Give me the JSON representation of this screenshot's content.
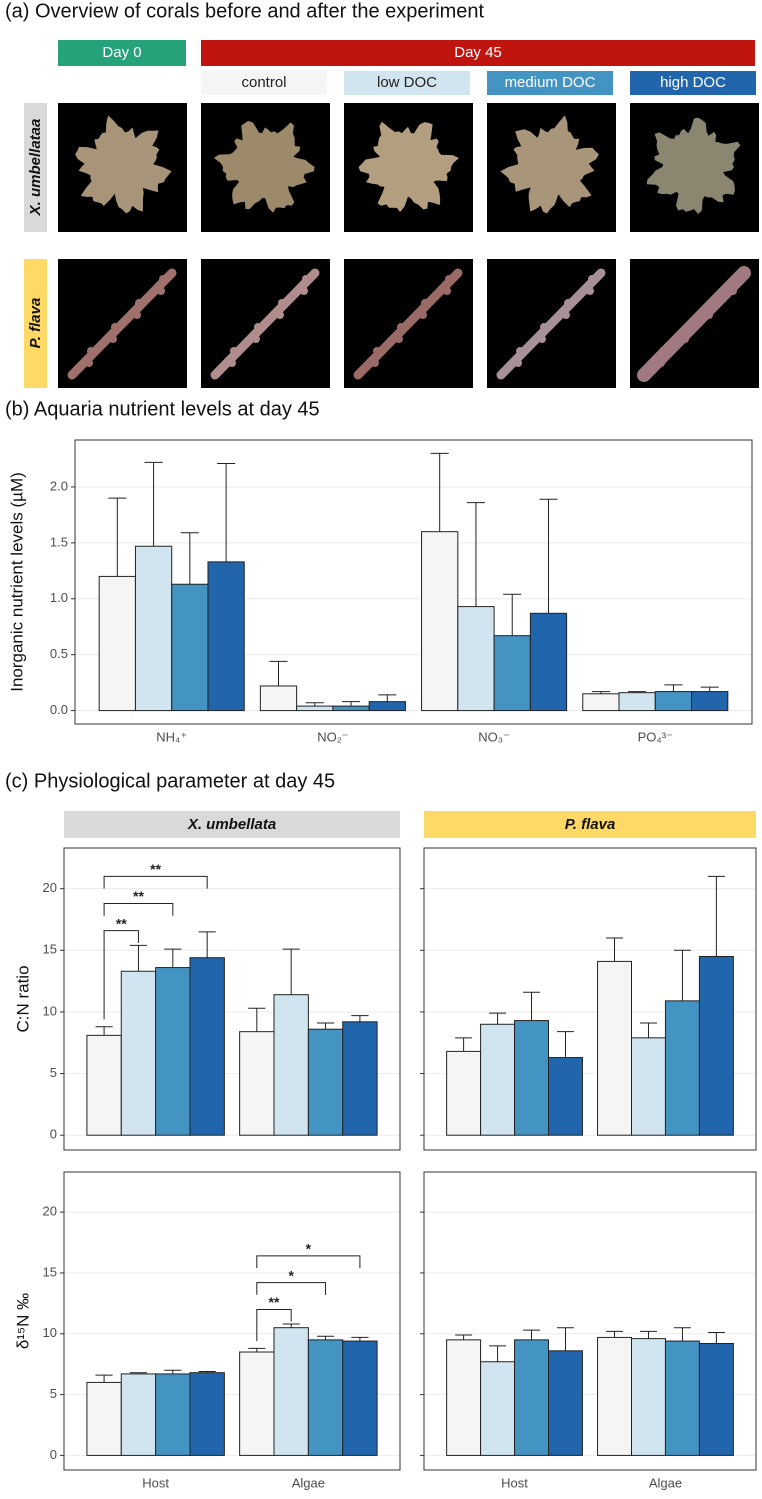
{
  "overview": {
    "title": "(a) Overview of corals before and after the experiment",
    "day0": "Day 0",
    "day45": "Day 45",
    "treatments": [
      "control",
      "low DOC",
      "medium DOC",
      "high DOC"
    ],
    "species": [
      "X. umbellataa",
      "P. flava"
    ]
  },
  "chart_data": [
    {
      "type": "bar",
      "title": "(b) Aquaria nutrient levels at day 45",
      "ylabel": "Inorganic nutrient levels (µM)",
      "categories": [
        "NH₄⁺",
        "NO₂⁻",
        "NO₃⁻",
        "PO₄³⁻"
      ],
      "series": [
        {
          "color": "#f5f5f5",
          "values": [
            1.2,
            0.22,
            1.6,
            0.15
          ],
          "errors": [
            0.7,
            0.22,
            0.7,
            0.02
          ]
        },
        {
          "color": "#d1e5f0",
          "values": [
            1.47,
            0.04,
            0.93,
            0.16
          ],
          "errors": [
            0.75,
            0.03,
            0.93,
            0.01
          ]
        },
        {
          "color": "#4393c3",
          "values": [
            1.13,
            0.04,
            0.67,
            0.17
          ],
          "errors": [
            0.46,
            0.04,
            0.37,
            0.06
          ]
        },
        {
          "color": "#2166ac",
          "values": [
            1.33,
            0.08,
            0.87,
            0.17
          ],
          "errors": [
            0.88,
            0.06,
            1.02,
            0.04
          ]
        }
      ],
      "ylim": [
        -0.12,
        2.42
      ],
      "yticks": [
        {
          "value": 0,
          "label": "0.0"
        },
        0.5,
        {
          "value": 1,
          "label": "1.0"
        },
        1.5,
        {
          "value": 2,
          "label": "2.0"
        }
      ],
      "grid": true
    },
    {
      "type": "bar",
      "title": "(c) Physiological parameter at day 45",
      "strip": "X. umbellata",
      "strip_color": "#d9d9d9",
      "ylabel": "C:N ratio",
      "categories": [
        null,
        null
      ],
      "series": [
        {
          "color": "#f5f5f5",
          "values": [
            8.1,
            8.4
          ],
          "errors": [
            0.7,
            1.9
          ]
        },
        {
          "color": "#d1e5f0",
          "values": [
            13.3,
            11.4
          ],
          "errors": [
            2.1,
            3.7
          ]
        },
        {
          "color": "#4393c3",
          "values": [
            13.6,
            8.6
          ],
          "errors": [
            1.5,
            0.5
          ]
        },
        {
          "color": "#2166ac",
          "values": [
            14.4,
            9.2
          ],
          "errors": [
            2.1,
            0.5
          ]
        }
      ],
      "significance": [
        [
          "**",
          "**",
          "**"
        ],
        []
      ],
      "ylim": [
        -1.2,
        23.3
      ],
      "yticks": [
        0,
        5,
        10,
        15,
        20
      ],
      "grid": true
    },
    {
      "type": "bar",
      "strip": "P. flava",
      "strip_color": "#ffd966",
      "categories": [
        null,
        null
      ],
      "series": [
        {
          "color": "#f5f5f5",
          "values": [
            6.8,
            14.1
          ],
          "errors": [
            1.1,
            1.9
          ]
        },
        {
          "color": "#d1e5f0",
          "values": [
            9.0,
            7.9
          ],
          "errors": [
            0.9,
            1.2
          ]
        },
        {
          "color": "#4393c3",
          "values": [
            9.3,
            10.9
          ],
          "errors": [
            2.3,
            4.1
          ]
        },
        {
          "color": "#2166ac",
          "values": [
            6.3,
            14.5
          ],
          "errors": [
            2.1,
            6.5
          ]
        }
      ],
      "ylim": [
        -1.2,
        23.3
      ],
      "yticks": [
        0,
        5,
        10,
        15,
        20
      ],
      "y_tick_labels": false,
      "grid": true
    },
    {
      "type": "bar",
      "ylabel": "δ¹⁵N ‰",
      "categories": [
        "Host",
        "Algae"
      ],
      "series": [
        {
          "color": "#f5f5f5",
          "values": [
            6.0,
            8.5
          ],
          "errors": [
            0.6,
            0.3
          ]
        },
        {
          "color": "#d1e5f0",
          "values": [
            6.7,
            10.5
          ],
          "errors": [
            0.1,
            0.3
          ]
        },
        {
          "color": "#4393c3",
          "values": [
            6.7,
            9.5
          ],
          "errors": [
            0.3,
            0.3
          ]
        },
        {
          "color": "#2166ac",
          "values": [
            6.8,
            9.4
          ],
          "errors": [
            0.1,
            0.3
          ]
        }
      ],
      "significance": [
        [],
        [
          "**",
          "*",
          "*"
        ]
      ],
      "ylim": [
        -1.2,
        23.3
      ],
      "yticks": [
        0,
        5,
        10,
        15,
        20
      ],
      "grid": true
    },
    {
      "type": "bar",
      "categories": [
        "Host",
        "Algae"
      ],
      "series": [
        {
          "color": "#f5f5f5",
          "values": [
            9.5,
            9.7
          ],
          "errors": [
            0.4,
            0.5
          ]
        },
        {
          "color": "#d1e5f0",
          "values": [
            7.7,
            9.6
          ],
          "errors": [
            1.3,
            0.6
          ]
        },
        {
          "color": "#4393c3",
          "values": [
            9.5,
            9.4
          ],
          "errors": [
            0.8,
            1.1
          ]
        },
        {
          "color": "#2166ac",
          "values": [
            8.6,
            9.2
          ],
          "errors": [
            1.9,
            0.9
          ]
        }
      ],
      "ylim": [
        -1.2,
        23.3
      ],
      "yticks": [
        0,
        5,
        10,
        15,
        20
      ],
      "y_tick_labels": false,
      "grid": true
    }
  ]
}
